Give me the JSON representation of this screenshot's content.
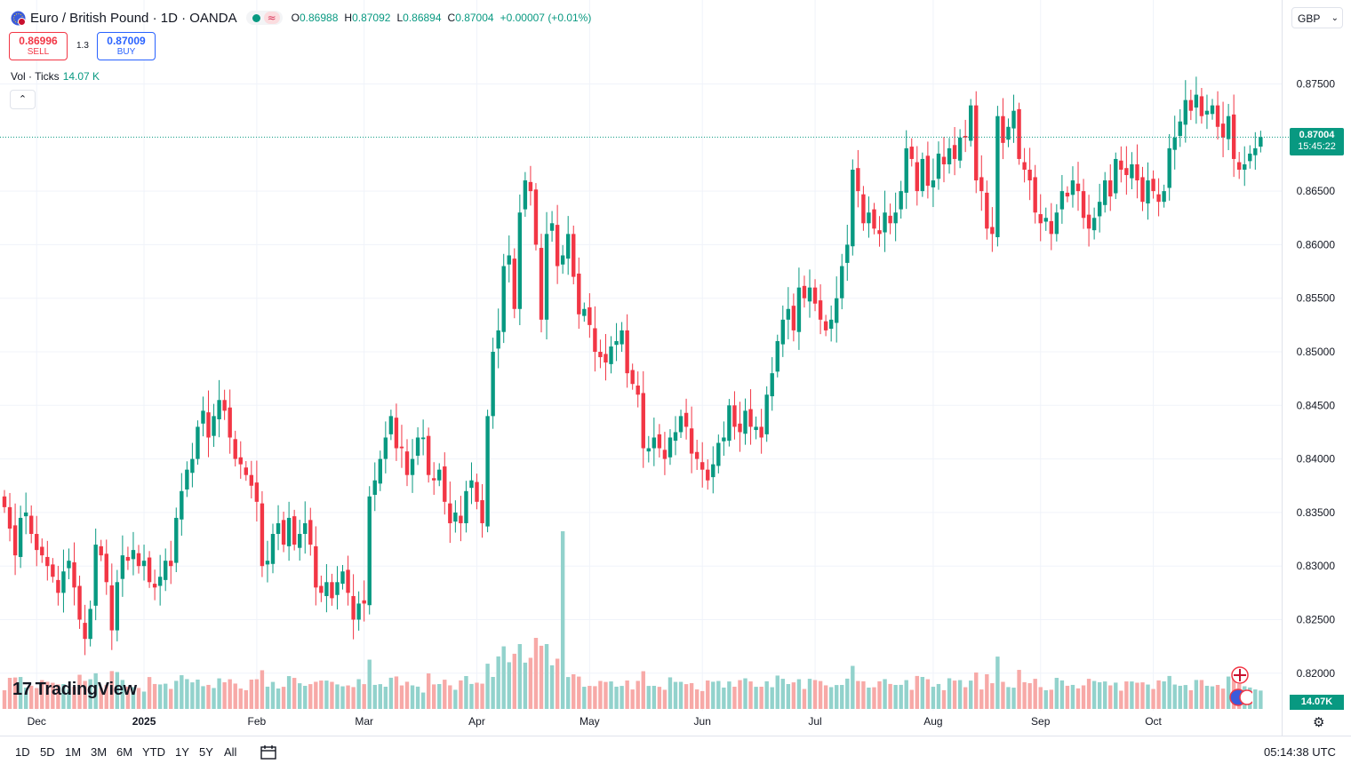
{
  "header": {
    "symbol_title": "Euro / British Pound · 1D · OANDA",
    "ohlc": {
      "o_key": "O",
      "o": "0.86988",
      "h_key": "H",
      "h": "0.87092",
      "l_key": "L",
      "l": "0.86894",
      "c_key": "C",
      "c": "0.87004",
      "change": "+0.00007 (+0.01%)"
    },
    "sell_price": "0.86996",
    "sell_label": "SELL",
    "buy_price": "0.87009",
    "buy_label": "BUY",
    "spread": "1.3",
    "vol_label": "Vol · Ticks",
    "vol_value": "14.07 K",
    "collapse_icon": "chevron-up-icon",
    "currency": "GBP"
  },
  "last_price": {
    "price": "0.87004",
    "countdown": "15:45:22"
  },
  "volume_tag": "14.07K",
  "logo_text": "TradingView",
  "bottom_bar": {
    "ranges": [
      "1D",
      "5D",
      "1M",
      "3M",
      "6M",
      "YTD",
      "1Y",
      "5Y",
      "All"
    ],
    "time": "05:14:38 UTC"
  },
  "colors": {
    "up": "#089981",
    "down": "#f23645",
    "vol_up": "#92d2cc",
    "vol_down": "#f7a9a7",
    "grid": "#f0f3fa"
  },
  "chart_data": {
    "type": "candlestick",
    "symbol": "Euro / British Pound",
    "y_ticks": [
      "0.87500",
      "0.86500",
      "0.86000",
      "0.85500",
      "0.85000",
      "0.84500",
      "0.84000",
      "0.83500",
      "0.83000",
      "0.82500",
      "0.82000"
    ],
    "ylim": [
      0.8165,
      0.8772
    ],
    "x_ticks": [
      "Dec",
      "2025",
      "Feb",
      "Mar",
      "Apr",
      "May",
      "Jun",
      "Jul",
      "Aug",
      "Sep",
      "Oct"
    ],
    "x_tick_bars": [
      6,
      26,
      47,
      67,
      88,
      109,
      130,
      151,
      173,
      193,
      214
    ],
    "last_price": 0.87004,
    "grid": true,
    "close": [
      0.8355,
      0.8335,
      0.831,
      0.8345,
      0.835,
      0.833,
      0.8315,
      0.831,
      0.83,
      0.829,
      0.8275,
      0.8295,
      0.8305,
      0.828,
      0.825,
      0.8232,
      0.826,
      0.832,
      0.831,
      0.8285,
      0.824,
      0.8285,
      0.831,
      0.8305,
      0.8315,
      0.83,
      0.8305,
      0.8285,
      0.828,
      0.829,
      0.8305,
      0.83,
      0.8345,
      0.837,
      0.839,
      0.84,
      0.843,
      0.8445,
      0.842,
      0.844,
      0.8455,
      0.8445,
      0.842,
      0.84,
      0.8395,
      0.8385,
      0.8375,
      0.836,
      0.83,
      0.8305,
      0.833,
      0.834,
      0.832,
      0.8345,
      0.832,
      0.833,
      0.834,
      0.832,
      0.828,
      0.8275,
      0.8285,
      0.827,
      0.8285,
      0.8295,
      0.8275,
      0.825,
      0.8265,
      0.8265,
      0.8365,
      0.838,
      0.84,
      0.842,
      0.844,
      0.841,
      0.841,
      0.8385,
      0.84,
      0.842,
      0.842,
      0.8385,
      0.838,
      0.839,
      0.836,
      0.834,
      0.835,
      0.834,
      0.837,
      0.838,
      0.836,
      0.834,
      0.844,
      0.85,
      0.852,
      0.858,
      0.859,
      0.854,
      0.863,
      0.866,
      0.865,
      0.86,
      0.853,
      0.861,
      0.862,
      0.858,
      0.859,
      0.861,
      0.857,
      0.8535,
      0.854,
      0.8525,
      0.85,
      0.8495,
      0.849,
      0.8505,
      0.851,
      0.852,
      0.848,
      0.847,
      0.846,
      0.841,
      0.841,
      0.842,
      0.841,
      0.84,
      0.842,
      0.8425,
      0.844,
      0.843,
      0.8405,
      0.84,
      0.839,
      0.838,
      0.8395,
      0.8415,
      0.842,
      0.845,
      0.843,
      0.8425,
      0.8445,
      0.843,
      0.843,
      0.842,
      0.846,
      0.848,
      0.851,
      0.853,
      0.854,
      0.852,
      0.856,
      0.855,
      0.856,
      0.8545,
      0.853,
      0.852,
      0.853,
      0.855,
      0.858,
      0.86,
      0.867,
      0.865,
      0.862,
      0.863,
      0.8615,
      0.861,
      0.863,
      0.862,
      0.863,
      0.865,
      0.869,
      0.868,
      0.865,
      0.868,
      0.8655,
      0.866,
      0.8685,
      0.8675,
      0.869,
      0.868,
      0.87,
      0.87,
      0.873,
      0.866,
      0.865,
      0.8615,
      0.861,
      0.872,
      0.8695,
      0.871,
      0.8725,
      0.868,
      0.867,
      0.866,
      0.863,
      0.862,
      0.8625,
      0.861,
      0.863,
      0.865,
      0.8645,
      0.866,
      0.865,
      0.8625,
      0.8615,
      0.8625,
      0.864,
      0.866,
      0.8645,
      0.868,
      0.867,
      0.8665,
      0.8675,
      0.866,
      0.864,
      0.866,
      0.865,
      0.864,
      0.865,
      0.869,
      0.87,
      0.8715,
      0.8735,
      0.8725,
      0.874,
      0.872,
      0.8725,
      0.873,
      0.871,
      0.87,
      0.872,
      0.868,
      0.867,
      0.8675,
      0.8685,
      0.869,
      0.87004
    ]
  }
}
